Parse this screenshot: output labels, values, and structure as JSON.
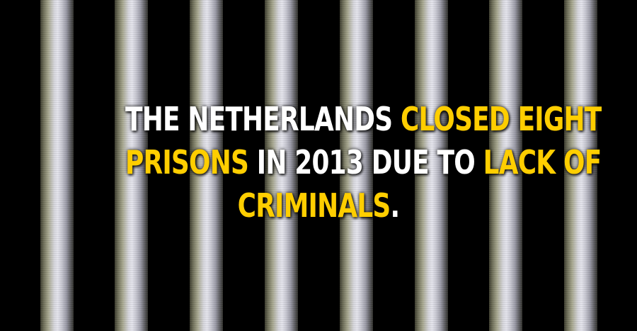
{
  "background": {
    "bar_icon": "prison-bars",
    "bar_count": 8
  },
  "colors": {
    "text": "#ffffff",
    "highlight": "#ffce00",
    "background": "#000000"
  },
  "fact": {
    "line1": {
      "part1": "THE NETHERLANDS ",
      "part2": "CLOSED EIGHT"
    },
    "line2": {
      "part1": "PRISONS",
      "part2": " IN 2013 DUE TO ",
      "part3": "LACK OF"
    },
    "line3": {
      "part1": "CRIMINALS",
      "part2": "."
    }
  }
}
